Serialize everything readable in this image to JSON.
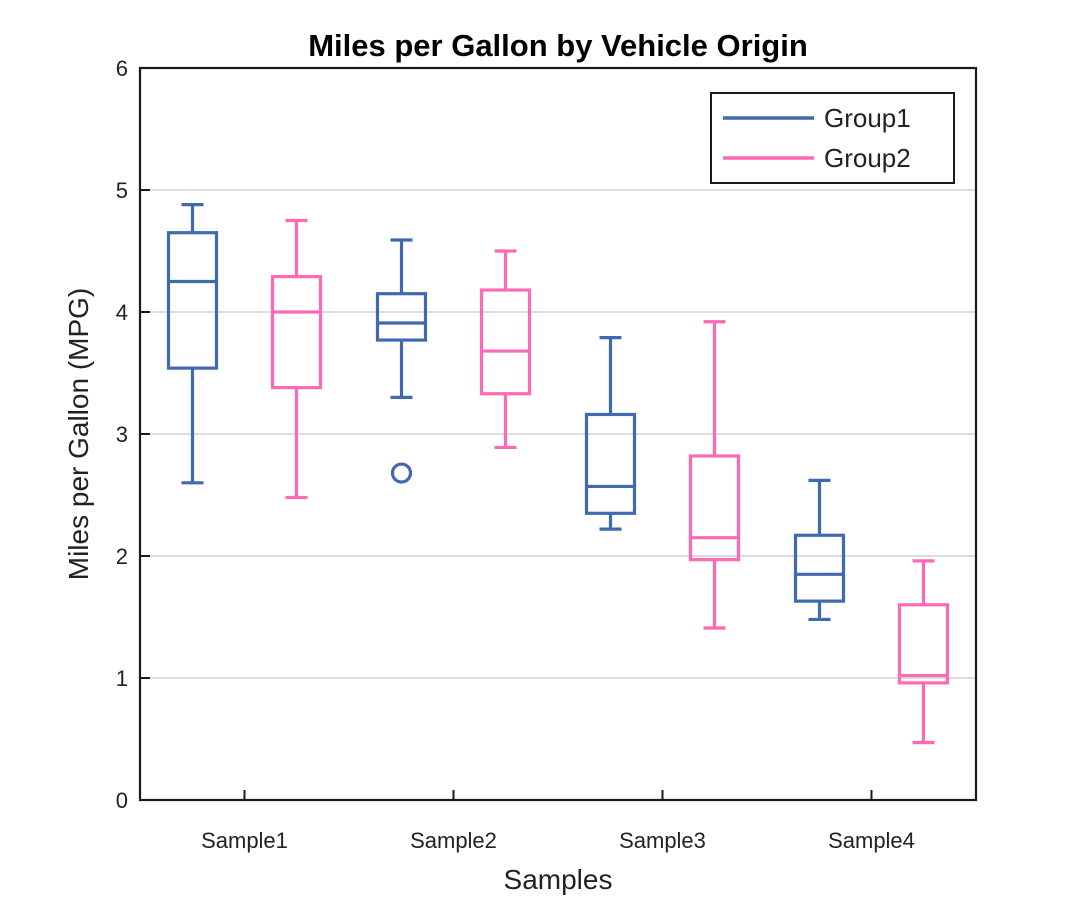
{
  "chart_data": {
    "type": "boxplot",
    "title": "Miles per Gallon by Vehicle Origin",
    "xlabel": "Samples",
    "ylabel": "Miles per Gallon (MPG)",
    "ylim": [
      0,
      6
    ],
    "yticks": [
      0,
      1,
      2,
      3,
      4,
      5,
      6
    ],
    "grid": "horizontal",
    "legend_position": "top-right",
    "categories": [
      "Sample1",
      "Sample2",
      "Sample3",
      "Sample4"
    ],
    "series": [
      {
        "name": "Group1",
        "color": "#4169b0",
        "boxes": [
          {
            "whisker_low": 2.6,
            "q1": 3.54,
            "median": 4.25,
            "q3": 4.65,
            "whisker_high": 4.88,
            "outliers": []
          },
          {
            "whisker_low": 3.3,
            "q1": 3.77,
            "median": 3.91,
            "q3": 4.15,
            "whisker_high": 4.59,
            "outliers": [
              2.68
            ]
          },
          {
            "whisker_low": 2.22,
            "q1": 2.35,
            "median": 2.57,
            "q3": 3.16,
            "whisker_high": 3.79,
            "outliers": []
          },
          {
            "whisker_low": 1.48,
            "q1": 1.63,
            "median": 1.85,
            "q3": 2.17,
            "whisker_high": 2.62,
            "outliers": []
          }
        ]
      },
      {
        "name": "Group2",
        "color": "#ff69b4",
        "boxes": [
          {
            "whisker_low": 2.48,
            "q1": 3.38,
            "median": 4.0,
            "q3": 4.29,
            "whisker_high": 4.75,
            "outliers": []
          },
          {
            "whisker_low": 2.89,
            "q1": 3.33,
            "median": 3.68,
            "q3": 4.18,
            "whisker_high": 4.5,
            "outliers": []
          },
          {
            "whisker_low": 1.41,
            "q1": 1.97,
            "median": 2.15,
            "q3": 2.82,
            "whisker_high": 3.92,
            "outliers": []
          },
          {
            "whisker_low": 0.47,
            "q1": 0.96,
            "median": 1.02,
            "q3": 1.6,
            "whisker_high": 1.96,
            "outliers": []
          }
        ]
      }
    ]
  }
}
